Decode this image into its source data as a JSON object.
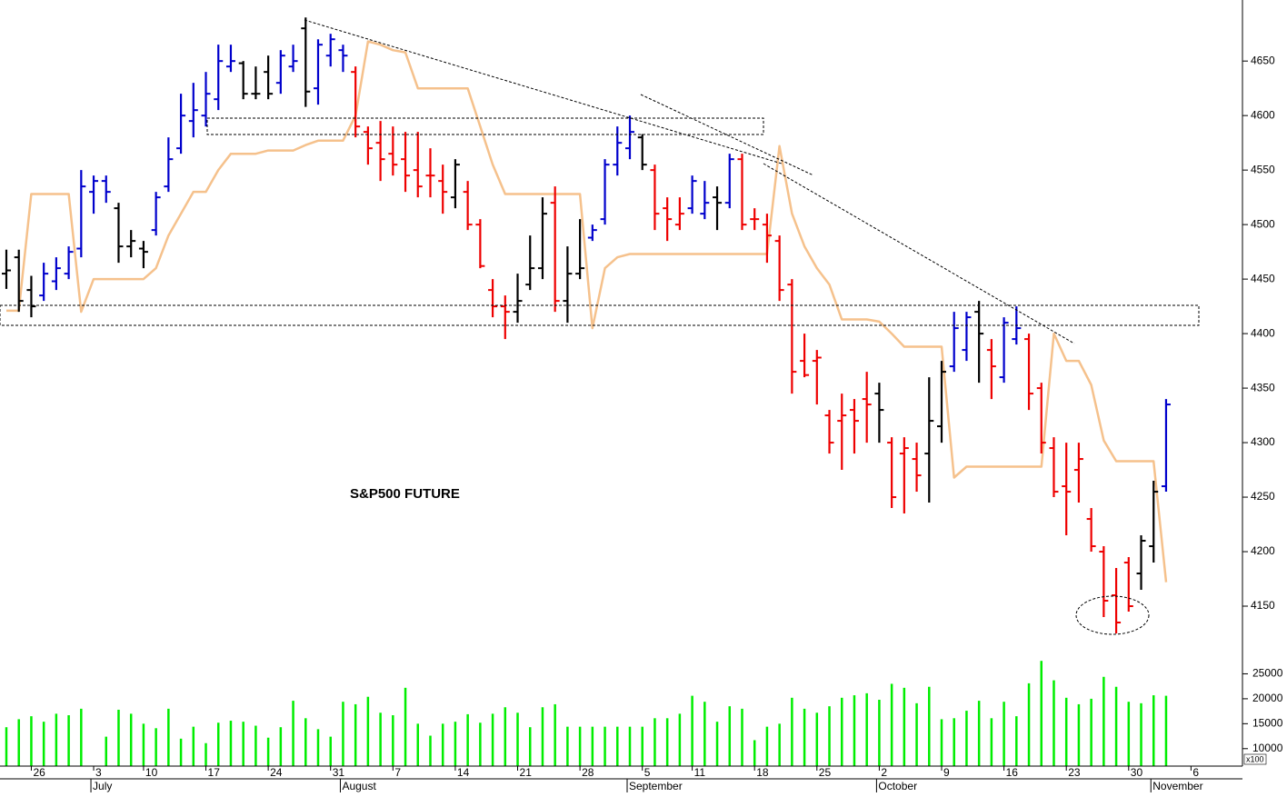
{
  "chart_data": {
    "type": "ohlc",
    "title": "S&P500 FUTURE",
    "categories": [
      null,
      null,
      "26",
      null,
      null,
      null,
      null,
      "3",
      null,
      null,
      null,
      "10",
      null,
      null,
      null,
      null,
      "17",
      null,
      null,
      null,
      null,
      "24",
      null,
      null,
      null,
      null,
      "31",
      null,
      null,
      null,
      null,
      "7",
      null,
      null,
      null,
      null,
      "14",
      null,
      null,
      null,
      null,
      "21",
      null,
      null,
      null,
      null,
      "28",
      null,
      null,
      null,
      null,
      "5",
      null,
      null,
      null,
      "11",
      null,
      null,
      null,
      null,
      "18",
      null,
      null,
      null,
      null,
      "25",
      null,
      null,
      null,
      null,
      "2",
      null,
      null,
      null,
      null,
      "9",
      null,
      null,
      null,
      null,
      "16",
      null,
      null,
      null,
      null,
      "23",
      null,
      null,
      null,
      null,
      "30",
      null,
      null,
      null,
      null,
      "6"
    ],
    "month_categories": [
      null,
      null,
      null,
      null,
      null,
      null,
      null,
      "July",
      null,
      null,
      null,
      null,
      null,
      null,
      null,
      null,
      null,
      null,
      null,
      null,
      null,
      null,
      null,
      null,
      null,
      null,
      null,
      "August",
      null,
      null,
      null,
      null,
      null,
      null,
      null,
      null,
      null,
      null,
      null,
      null,
      null,
      null,
      null,
      null,
      null,
      null,
      null,
      null,
      null,
      null,
      "September",
      null,
      null,
      null,
      null,
      null,
      null,
      null,
      null,
      null,
      null,
      null,
      null,
      null,
      null,
      null,
      null,
      null,
      null,
      null,
      "October",
      null,
      null,
      null,
      null,
      null,
      null,
      null,
      null,
      null,
      null,
      null,
      null,
      null,
      null,
      null,
      null,
      null,
      null,
      null,
      null,
      null,
      "November",
      null,
      null,
      null
    ],
    "open": [
      4455,
      4470,
      4440,
      4435,
      4448,
      4455,
      4478,
      4530,
      4540,
      4515,
      4480,
      4478,
      4495,
      4535,
      4570,
      4595,
      4600,
      4615,
      4645,
      4648,
      4620,
      4640,
      4630,
      4645,
      4680,
      4625,
      4655,
      4660,
      4640,
      4585,
      4575,
      4565,
      4560,
      4550,
      4545,
      4540,
      4525,
      4530,
      4500,
      4440,
      4425,
      4420,
      4445,
      4460,
      4520,
      4430,
      4455,
      4488,
      4505,
      4555,
      4570,
      4580,
      4550,
      4515,
      4500,
      4515,
      4510,
      4525,
      4520,
      4560,
      4505,
      4500,
      4485,
      4445,
      4375,
      4375,
      4325,
      4320,
      4330,
      4340,
      4345,
      4300,
      4290,
      4285,
      4290,
      4315,
      4370,
      4385,
      4420,
      4385,
      4360,
      4395,
      4395,
      4350,
      4295,
      4260,
      4275,
      4230,
      4200,
      4160,
      4190,
      4180,
      4205,
      4260,
      null,
      null
    ],
    "high": [
      4477,
      4477,
      4453,
      4465,
      4470,
      4480,
      4550,
      4545,
      4545,
      4520,
      4495,
      4485,
      4530,
      4580,
      4620,
      4630,
      4640,
      4665,
      4665,
      4650,
      4645,
      4655,
      4660,
      4665,
      4690,
      4670,
      4675,
      4665,
      4645,
      4590,
      4595,
      4590,
      4585,
      4585,
      4570,
      4555,
      4560,
      4540,
      4505,
      4450,
      4435,
      4455,
      4490,
      4525,
      4535,
      4480,
      4505,
      4500,
      4560,
      4590,
      4600,
      4583,
      4555,
      4525,
      4525,
      4545,
      4540,
      4535,
      4565,
      4565,
      4515,
      4510,
      4490,
      4450,
      4400,
      4385,
      4330,
      4345,
      4340,
      4365,
      4355,
      4305,
      4305,
      4300,
      4360,
      4375,
      4420,
      4420,
      4430,
      4395,
      4415,
      4425,
      4400,
      4355,
      4305,
      4300,
      4300,
      4240,
      4205,
      4185,
      4195,
      4215,
      4265,
      4340,
      null,
      null
    ],
    "low": [
      4441,
      4420,
      4415,
      4430,
      4440,
      4450,
      4470,
      4510,
      4520,
      4465,
      4470,
      4460,
      4490,
      4530,
      4565,
      4580,
      4590,
      4605,
      4640,
      4615,
      4615,
      4615,
      4620,
      4640,
      4608,
      4610,
      4645,
      4640,
      4580,
      4555,
      4540,
      4545,
      4530,
      4525,
      4525,
      4510,
      4515,
      4495,
      4460,
      4415,
      4395,
      4410,
      4440,
      4450,
      4420,
      4410,
      4450,
      4485,
      4500,
      4545,
      4560,
      4550,
      4495,
      4485,
      4495,
      4510,
      4505,
      4495,
      4515,
      4495,
      4495,
      4465,
      4430,
      4345,
      4360,
      4335,
      4290,
      4275,
      4290,
      4300,
      4300,
      4240,
      4235,
      4255,
      4245,
      4300,
      4365,
      4375,
      4355,
      4340,
      4355,
      4390,
      4330,
      4290,
      4250,
      4215,
      4245,
      4200,
      4140,
      4125,
      4145,
      4165,
      4190,
      4255,
      null,
      null
    ],
    "close": [
      4458,
      4430,
      4425,
      4455,
      4460,
      4475,
      4535,
      4540,
      4530,
      4480,
      4485,
      4475,
      4525,
      4560,
      4600,
      4605,
      4620,
      4650,
      4650,
      4620,
      4620,
      4620,
      4655,
      4650,
      4622,
      4665,
      4670,
      4655,
      4590,
      4570,
      4560,
      4555,
      4545,
      4535,
      4545,
      4530,
      4555,
      4500,
      4462,
      4425,
      4420,
      4430,
      4460,
      4510,
      4430,
      4455,
      4460,
      4495,
      4555,
      4575,
      4585,
      4555,
      4510,
      4505,
      4510,
      4540,
      4520,
      4520,
      4560,
      4500,
      4505,
      4490,
      4440,
      4365,
      4362,
      4378,
      4300,
      4325,
      4320,
      4335,
      4330,
      4250,
      4295,
      4270,
      4320,
      4365,
      4405,
      4415,
      4400,
      4370,
      4410,
      4405,
      4345,
      4300,
      4255,
      4255,
      4285,
      4205,
      4155,
      4135,
      4150,
      4210,
      4255,
      4335,
      null,
      null
    ],
    "bar_colors": [
      "#000000",
      "#000000",
      "#000000",
      "#0000cc",
      "#0000cc",
      "#0000cc",
      "#0000cc",
      "#0000cc",
      "#0000cc",
      "#000000",
      "#000000",
      "#000000",
      "#0000cc",
      "#0000cc",
      "#0000cc",
      "#0000cc",
      "#0000cc",
      "#0000cc",
      "#0000cc",
      "#000000",
      "#000000",
      "#000000",
      "#0000cc",
      "#0000cc",
      "#000000",
      "#0000cc",
      "#0000cc",
      "#0000cc",
      "#ee0000",
      "#ee0000",
      "#ee0000",
      "#ee0000",
      "#ee0000",
      "#ee0000",
      "#ee0000",
      "#ee0000",
      "#000000",
      "#ee0000",
      "#ee0000",
      "#ee0000",
      "#ee0000",
      "#000000",
      "#000000",
      "#000000",
      "#ee0000",
      "#000000",
      "#000000",
      "#0000cc",
      "#0000cc",
      "#0000cc",
      "#0000cc",
      "#000000",
      "#ee0000",
      "#ee0000",
      "#ee0000",
      "#0000cc",
      "#0000cc",
      "#000000",
      "#0000cc",
      "#ee0000",
      "#ee0000",
      "#ee0000",
      "#ee0000",
      "#ee0000",
      "#ee0000",
      "#ee0000",
      "#ee0000",
      "#ee0000",
      "#ee0000",
      "#ee0000",
      "#000000",
      "#ee0000",
      "#ee0000",
      "#ee0000",
      "#000000",
      "#000000",
      "#0000cc",
      "#0000cc",
      "#000000",
      "#ee0000",
      "#0000cc",
      "#0000cc",
      "#ee0000",
      "#ee0000",
      "#ee0000",
      "#ee0000",
      "#ee0000",
      "#ee0000",
      "#ee0000",
      "#ee0000",
      "#ee0000",
      "#000000",
      "#000000",
      "#0000cc",
      null,
      null
    ],
    "line": {
      "color": "#f5c18c",
      "values": [
        4421,
        4421,
        4528,
        4528,
        4528,
        4528,
        4420,
        4450,
        4450,
        4450,
        4450,
        4450,
        4460,
        4490,
        4510,
        4530,
        4530,
        4550,
        4565,
        4565,
        4565,
        4568,
        4568,
        4568,
        4573,
        4577,
        4577,
        4577,
        4600,
        4668,
        4665,
        4660,
        4658,
        4625,
        4625,
        4625,
        4625,
        4625,
        4590,
        4555,
        4528,
        4528,
        4528,
        4528,
        4528,
        4528,
        4528,
        4405,
        4460,
        4470,
        4473,
        4473,
        4473,
        4473,
        4473,
        4473,
        4473,
        4473,
        4473,
        4473,
        4473,
        4473,
        4572,
        4510,
        4480,
        4460,
        4445,
        4413,
        4413,
        4413,
        4411,
        4400,
        4388,
        4388,
        4388,
        4388,
        4268,
        4278,
        4278,
        4278,
        4278,
        4278,
        4278,
        4278,
        4400,
        4375,
        4375,
        4353,
        4302,
        4283,
        4283,
        4283,
        4283,
        4172,
        null,
        null
      ]
    },
    "ylim": [
      4110,
      4706
    ],
    "yticks": [
      4150,
      4200,
      4250,
      4300,
      4350,
      4400,
      4450,
      4500,
      4550,
      4600,
      4650
    ],
    "volume": {
      "color": "#00ee00",
      "axis_label": "x100",
      "values": [
        14300,
        15900,
        16500,
        15400,
        17000,
        16700,
        18000,
        null,
        12400,
        17800,
        17000,
        15000,
        14100,
        18000,
        12000,
        14400,
        11100,
        15200,
        15600,
        15400,
        14600,
        12200,
        14300,
        19600,
        16100,
        13900,
        12400,
        19400,
        18900,
        20400,
        17200,
        16700,
        22200,
        15000,
        12600,
        15000,
        15400,
        16900,
        15200,
        17000,
        18300,
        17200,
        14300,
        18300,
        18900,
        14400,
        14400,
        14400,
        14400,
        14400,
        14400,
        14400,
        16100,
        16100,
        17000,
        20600,
        19400,
        15400,
        18500,
        18000,
        11700,
        14400,
        15000,
        20200,
        18000,
        17200,
        18500,
        20200,
        20700,
        21100,
        19800,
        23000,
        22200,
        19100,
        22400,
        15900,
        16100,
        17600,
        19600,
        16100,
        19400,
        16500,
        23100,
        27600,
        23700,
        20200,
        18900,
        20000,
        24400,
        22400,
        19400,
        19100,
        20700,
        20600,
        null,
        null
      ],
      "ylim": [
        6500,
        28000
      ],
      "yticks": [
        10000,
        15000,
        20000,
        25000
      ]
    }
  }
}
